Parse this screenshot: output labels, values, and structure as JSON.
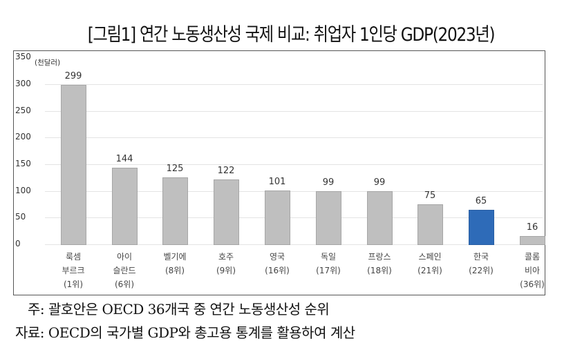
{
  "chart_data": {
    "type": "bar",
    "title": "[그림1] 연간 노동생산성 국제 비교: 취업자 1인당 GDP(2023년)",
    "ylabel": "(천달러)",
    "xlabel": "",
    "ylim": [
      0,
      350
    ],
    "yticks": [
      0,
      50,
      100,
      150,
      200,
      250,
      300,
      350
    ],
    "grid": true,
    "legend": null,
    "categories": [
      "룩셈부르크 (1위)",
      "아이슬란드 (6위)",
      "벨기에 (8위)",
      "호주 (9위)",
      "영국 (16위)",
      "독일 (17위)",
      "프랑스 (18위)",
      "스페인 (21위)",
      "한국 (22위)",
      "콜롬비아 (36위)"
    ],
    "values": [
      299,
      144,
      125,
      122,
      101,
      99,
      99,
      75,
      65,
      16
    ],
    "highlight": "한국 (22위)",
    "colors": {
      "default": "#bfbfbf",
      "highlight": "#2e6bb8"
    }
  },
  "title": "[그림1] 연간 노동생산성 국제 비교: 취업자 1인당 GDP(2023년)",
  "unit": "(천달러)",
  "yticks": [
    "350",
    "300",
    "250",
    "200",
    "150",
    "100",
    "50",
    "0"
  ],
  "bars": [
    {
      "label": "룩셈\n부르크\n(1위)",
      "value": "299"
    },
    {
      "label": "아이\n슬란드\n(6위)",
      "value": "144"
    },
    {
      "label": "벨기에\n(8위)",
      "value": "125"
    },
    {
      "label": "호주\n(9위)",
      "value": "122"
    },
    {
      "label": "영국\n(16위)",
      "value": "101"
    },
    {
      "label": "독일\n(17위)",
      "value": "99"
    },
    {
      "label": "프랑스\n(18위)",
      "value": "99"
    },
    {
      "label": "스페인\n(21위)",
      "value": "75"
    },
    {
      "label": "한국\n(22위)",
      "value": "65"
    },
    {
      "label": "콜롬\n비아\n(36위)",
      "value": "16"
    }
  ],
  "notes": {
    "note": "주: 괄호안은 OECD 36개국 중 연간 노동생산성 순위",
    "source": "자료: OECD의 국가별 GDP와 총고용 통계를 활용하여 계산"
  }
}
